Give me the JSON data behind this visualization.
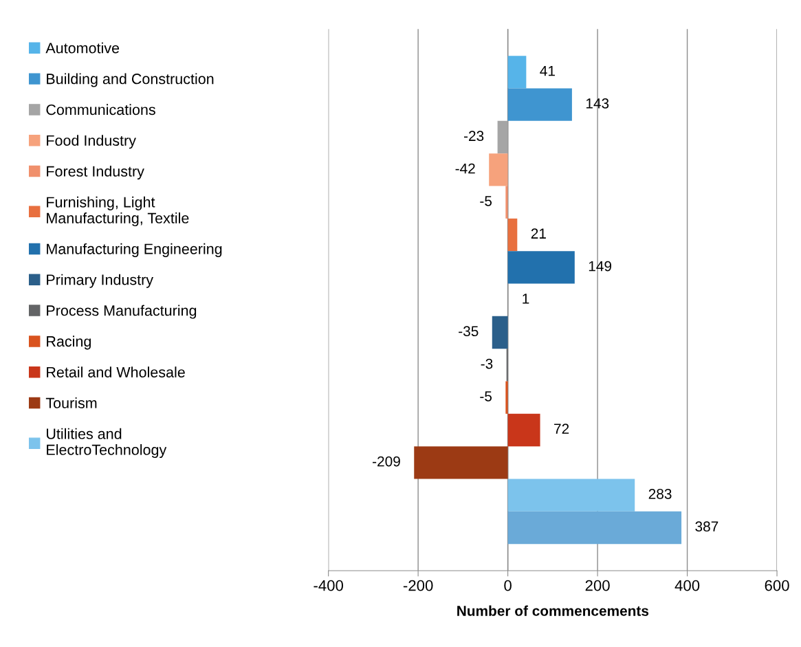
{
  "chart_data": {
    "type": "bar",
    "orientation": "horizontal",
    "xlabel": "Number of commencements",
    "categories": [
      null
    ],
    "series": [
      {
        "name": "Automotive",
        "color": "#56b4e9",
        "values": [
          41
        ]
      },
      {
        "name": "Building and Construction",
        "color": "#3f95d0",
        "values": [
          143
        ]
      },
      {
        "name": "Communications",
        "color": "#a5a5a5",
        "values": [
          -23
        ]
      },
      {
        "name": "Food Industry",
        "color": "#f6a27c",
        "values": [
          -42
        ]
      },
      {
        "name": "Forest Industry",
        "color": "#f0906c",
        "values": [
          -5
        ]
      },
      {
        "name": "Furnishing, Light\nManufacturing, Textile",
        "color": "#e8703f",
        "values": [
          21
        ]
      },
      {
        "name": "Manufacturing Engineering",
        "color": "#2271ad",
        "values": [
          149
        ]
      },
      {
        "color": "#8a8a8a",
        "values": [
          1
        ]
      },
      {
        "name": "Primary Industry",
        "color": "#2b5f8a",
        "values": [
          -35
        ]
      },
      {
        "name": "Process Manufacturing",
        "color": "#636466",
        "values": [
          -3
        ]
      },
      {
        "name": "Racing",
        "color": "#d9531e",
        "values": [
          -5
        ]
      },
      {
        "name": "Retail and Wholesale",
        "color": "#c9361a",
        "values": [
          72
        ]
      },
      {
        "name": "Tourism",
        "color": "#9c3a14",
        "values": [
          -209
        ]
      },
      {
        "name": "Utilities and\nElectroTechnology",
        "color": "#7cc3ec",
        "values": [
          283
        ]
      },
      {
        "color": "#6aaad8",
        "values": [
          387
        ]
      }
    ],
    "xlim": [
      -400,
      600
    ],
    "xticks": [
      -400,
      -200,
      0,
      200,
      400,
      600
    ],
    "grid": "x",
    "legend": "left",
    "data_labels": true
  }
}
